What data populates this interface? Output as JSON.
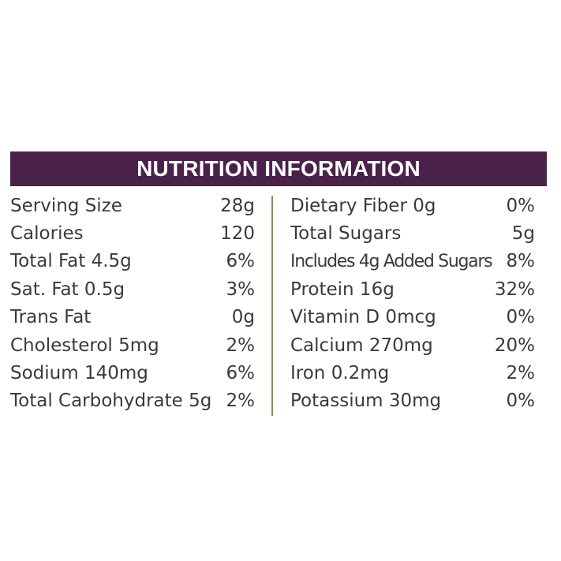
{
  "colors": {
    "brand": "#4a2149",
    "divider": "#6f9a4e",
    "text": "#3a3a3a"
  },
  "header": {
    "title": "NUTRITION INFORMATION"
  },
  "left_rows": [
    {
      "label": "Serving Size",
      "value": "28g"
    },
    {
      "label": "Calories",
      "value": "120"
    },
    {
      "label": "Total Fat 4.5g",
      "value": "6%"
    },
    {
      "label": "Sat. Fat 0.5g",
      "value": "3%"
    },
    {
      "label": "Trans Fat",
      "value": "0g"
    },
    {
      "label": "Cholesterol 5mg",
      "value": "2%"
    },
    {
      "label": "Sodium 140mg",
      "value": "6%"
    },
    {
      "label": "Total Carbohydrate 5g",
      "value": "2%"
    }
  ],
  "right_rows": [
    {
      "label": "Dietary Fiber 0g",
      "value": "0%"
    },
    {
      "label": "Total Sugars",
      "value": "5g"
    },
    {
      "label": "Includes 4g Added Sugars",
      "value": "8%"
    },
    {
      "label": "Protein 16g",
      "value": "32%"
    },
    {
      "label": "Vitamin D 0mcg",
      "value": "0%"
    },
    {
      "label": "Calcium 270mg",
      "value": "20%"
    },
    {
      "label": "Iron 0.2mg",
      "value": "2%"
    },
    {
      "label": "Potassium 30mg",
      "value": "0%"
    }
  ]
}
